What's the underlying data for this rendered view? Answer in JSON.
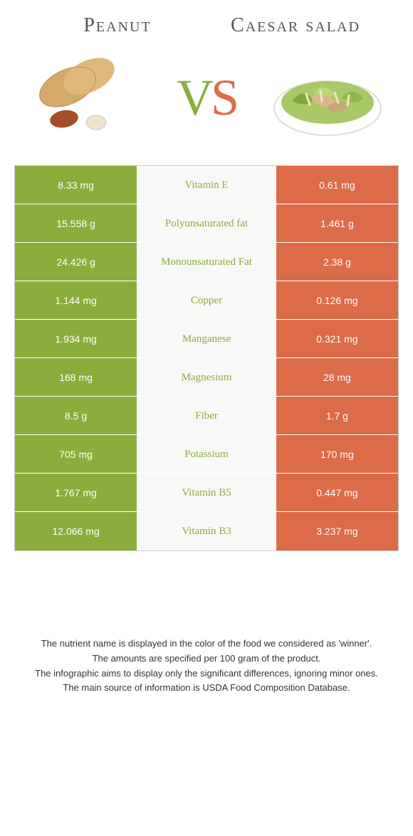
{
  "colors": {
    "left": "#8aad3c",
    "right": "#dc6b48",
    "mid_bg": "#f8f8f7",
    "text": "#ffffff"
  },
  "header": {
    "left_title": "Peanut",
    "right_title": "Caesar salad",
    "vs_v": "V",
    "vs_s": "S"
  },
  "rows": [
    {
      "left": "8.33 mg",
      "label": "Vitamin E",
      "right": "0.61 mg",
      "label_color": "left"
    },
    {
      "left": "15.558 g",
      "label": "Polyunsaturated fat",
      "right": "1.461 g",
      "label_color": "left"
    },
    {
      "left": "24.426 g",
      "label": "Monounsaturated Fat",
      "right": "2.38 g",
      "label_color": "left"
    },
    {
      "left": "1.144 mg",
      "label": "Copper",
      "right": "0.126 mg",
      "label_color": "left"
    },
    {
      "left": "1.934 mg",
      "label": "Manganese",
      "right": "0.321 mg",
      "label_color": "left"
    },
    {
      "left": "168 mg",
      "label": "Magnesium",
      "right": "28 mg",
      "label_color": "left"
    },
    {
      "left": "8.5 g",
      "label": "Fiber",
      "right": "1.7 g",
      "label_color": "left"
    },
    {
      "left": "705 mg",
      "label": "Potassium",
      "right": "170 mg",
      "label_color": "left"
    },
    {
      "left": "1.767 mg",
      "label": "Vitamin B5",
      "right": "0.447 mg",
      "label_color": "left"
    },
    {
      "left": "12.066 mg",
      "label": "Vitamin B3",
      "right": "3.237 mg",
      "label_color": "left"
    }
  ],
  "footer": {
    "line1": "The nutrient name is displayed in the color of the food we considered as 'winner'.",
    "line2": "The amounts are specified per 100 gram of the product.",
    "line3": "The infographic aims to display only the significant differences, ignoring minor ones.",
    "line4": "The main source of information is USDA Food Composition Database."
  }
}
